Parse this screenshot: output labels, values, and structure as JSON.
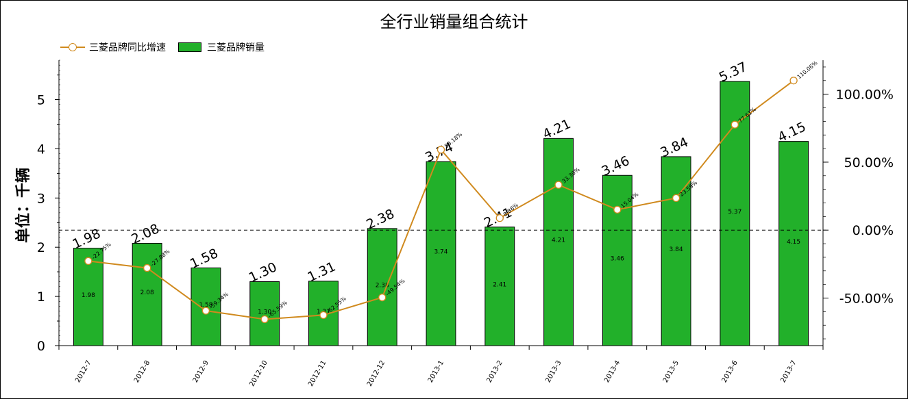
{
  "chart_data": {
    "type": "bar",
    "title": "全行业销量组合统计",
    "ylabel": "单位：千辆",
    "categories": [
      "2012-7",
      "2012-8",
      "2012-9",
      "2012-10",
      "2012-11",
      "2012-12",
      "2013-1",
      "2013-2",
      "2013-3",
      "2013-4",
      "2013-5",
      "2013-6",
      "2013-7"
    ],
    "series": [
      {
        "name": "三菱品牌销量",
        "type": "bar",
        "axis": "left",
        "color": "#22b02a",
        "values": [
          1.98,
          2.08,
          1.58,
          1.3,
          1.31,
          2.38,
          3.74,
          2.41,
          4.21,
          3.46,
          3.84,
          5.37,
          4.15
        ],
        "labels_top": [
          "1.98",
          "2.08",
          "1.58",
          "1.30",
          "1.31",
          "2.38",
          "3.74",
          "2.41",
          "4.21",
          "3.46",
          "3.84",
          "5.37",
          "4.15"
        ],
        "labels_inside": [
          "1.98",
          "2.08",
          "1.58",
          "1.30",
          "1.31",
          "2.38",
          "3.74",
          "2.41",
          "4.21",
          "3.46",
          "3.84",
          "5.37",
          "4.15"
        ]
      },
      {
        "name": "三菱品牌同比增速",
        "type": "line",
        "axis": "right",
        "color": "#d08a1e",
        "values": [
          -22.75,
          -27.88,
          -59.34,
          -65.59,
          -62.55,
          -49.54,
          59.18,
          8.86,
          33.3,
          15.04,
          23.59,
          77.61,
          110.06
        ],
        "labels": [
          "-22.75%",
          "-27.88%",
          "-59.34%",
          "-65.59%",
          "-62.55%",
          "-49.54%",
          "59.18%",
          "8.86%",
          "33.30%",
          "15.04%",
          "23.59%",
          "77.61%",
          "110.06%"
        ]
      }
    ],
    "left_axis": {
      "ylim": [
        0,
        5.8
      ],
      "ticks": [
        "0",
        "1",
        "2",
        "3",
        "4",
        "5"
      ]
    },
    "right_axis": {
      "ylim": [
        -85,
        125
      ],
      "ticks": [
        "-50.00%",
        "0.00%",
        "50.00%",
        "100.00%"
      ]
    },
    "reference_line": {
      "axis": "right",
      "value": 0,
      "style": "dashed"
    },
    "legend": {
      "position": "top-left"
    }
  }
}
